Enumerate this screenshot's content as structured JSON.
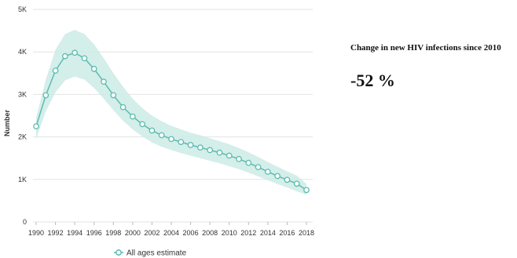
{
  "chart_data": {
    "type": "line",
    "title": "",
    "xlabel": "",
    "ylabel": "Number",
    "ylim": [
      0,
      5000
    ],
    "y_ticks": [
      0,
      1000,
      2000,
      3000,
      4000,
      5000
    ],
    "y_tick_labels": [
      "0",
      "1K",
      "2K",
      "3K",
      "4K",
      "5K"
    ],
    "x_tick_labels": [
      "1990",
      "1992",
      "1994",
      "1996",
      "1998",
      "2000",
      "2002",
      "2004",
      "2006",
      "2008",
      "2010",
      "2012",
      "2014",
      "2016",
      "2018"
    ],
    "grid": true,
    "legend": "bottom",
    "colors": {
      "line": "#5bbcb0",
      "band": "#cdebe6",
      "grid": "#e3e3e3"
    },
    "series": [
      {
        "name": "All ages estimate",
        "x": [
          1990,
          1991,
          1992,
          1993,
          1994,
          1995,
          1996,
          1997,
          1998,
          1999,
          2000,
          2001,
          2002,
          2003,
          2004,
          2005,
          2006,
          2007,
          2008,
          2009,
          2010,
          2011,
          2012,
          2013,
          2014,
          2015,
          2016,
          2017,
          2018
        ],
        "values": [
          2250,
          2980,
          3560,
          3900,
          3980,
          3850,
          3600,
          3300,
          2980,
          2700,
          2480,
          2300,
          2150,
          2040,
          1950,
          1880,
          1810,
          1750,
          1690,
          1630,
          1560,
          1480,
          1390,
          1290,
          1180,
          1080,
          990,
          900,
          750
        ],
        "lower": [
          1950,
          2600,
          3050,
          3330,
          3420,
          3350,
          3150,
          2900,
          2630,
          2380,
          2180,
          2010,
          1870,
          1770,
          1690,
          1620,
          1560,
          1500,
          1440,
          1380,
          1310,
          1240,
          1160,
          1070,
          980,
          890,
          810,
          720,
          640
        ],
        "upper": [
          2450,
          3350,
          4050,
          4420,
          4520,
          4420,
          4180,
          3850,
          3500,
          3180,
          2900,
          2680,
          2500,
          2370,
          2260,
          2180,
          2100,
          2040,
          1970,
          1900,
          1830,
          1740,
          1640,
          1530,
          1410,
          1300,
          1190,
          1090,
          900
        ]
      }
    ]
  },
  "side_panel": {
    "title": "Change in new HIV infections since 2010",
    "value": "-52",
    "unit": "%"
  }
}
